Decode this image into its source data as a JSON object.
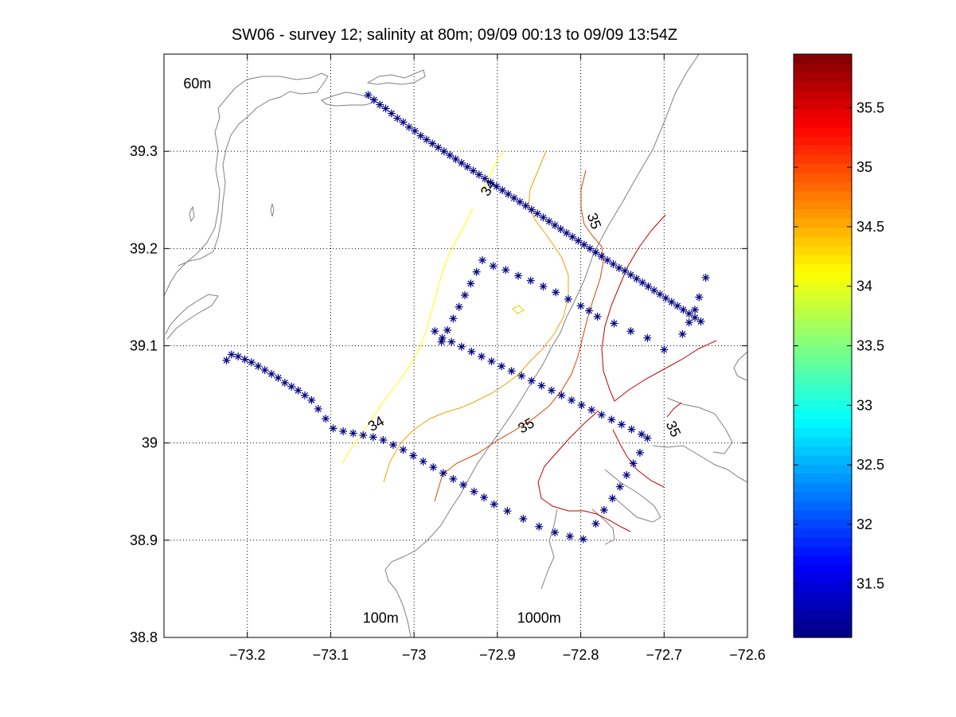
{
  "chart_data": {
    "type": "scatter",
    "title": "SW06 - survey 12; salinity at 80m; 09/09 00:13 to 09/09 13:54Z",
    "xlim": [
      -73.3,
      -72.6
    ],
    "ylim": [
      38.8,
      39.4
    ],
    "xticks": [
      "-73.2",
      "-73.1",
      "-73",
      "-72.9",
      "-72.8",
      "-72.7",
      "-72.6"
    ],
    "yticks": [
      "38.8",
      "38.9",
      "39",
      "39.1",
      "39.2",
      "39.3"
    ],
    "grid": true,
    "annotations": [
      {
        "text": "60m",
        "x": -73.26,
        "y": 39.365
      },
      {
        "text": "100m",
        "x": -73.04,
        "y": 38.815
      },
      {
        "text": "1000m",
        "x": -72.85,
        "y": 38.815
      }
    ],
    "station_marker": "*",
    "station_color": "#000080",
    "station_tracks": [
      {
        "points": [
          [
            -73.055,
            39.358
          ],
          [
            -73.048,
            39.353
          ],
          [
            -73.041,
            39.348
          ],
          [
            -73.034,
            39.344
          ],
          [
            -73.027,
            39.339
          ],
          [
            -73.02,
            39.334
          ],
          [
            -73.013,
            39.33
          ],
          [
            -73.006,
            39.325
          ],
          [
            -72.999,
            39.321
          ],
          [
            -72.992,
            39.316
          ],
          [
            -72.985,
            39.312
          ],
          [
            -72.978,
            39.308
          ],
          [
            -72.971,
            39.304
          ],
          [
            -72.964,
            39.3
          ],
          [
            -72.957,
            39.296
          ],
          [
            -72.95,
            39.292
          ],
          [
            -72.943,
            39.288
          ],
          [
            -72.936,
            39.284
          ],
          [
            -72.929,
            39.28
          ],
          [
            -72.922,
            39.276
          ],
          [
            -72.915,
            39.272
          ],
          [
            -72.908,
            39.268
          ],
          [
            -72.901,
            39.264
          ],
          [
            -72.894,
            39.26
          ],
          [
            -72.887,
            39.256
          ],
          [
            -72.88,
            39.252
          ],
          [
            -72.873,
            39.248
          ],
          [
            -72.866,
            39.244
          ],
          [
            -72.859,
            39.24
          ],
          [
            -72.852,
            39.236
          ],
          [
            -72.845,
            39.232
          ],
          [
            -72.838,
            39.228
          ],
          [
            -72.831,
            39.224
          ],
          [
            -72.824,
            39.22
          ],
          [
            -72.817,
            39.216
          ],
          [
            -72.81,
            39.212
          ],
          [
            -72.803,
            39.208
          ],
          [
            -72.796,
            39.204
          ],
          [
            -72.789,
            39.2
          ],
          [
            -72.782,
            39.196
          ],
          [
            -72.775,
            39.192
          ],
          [
            -72.768,
            39.188
          ],
          [
            -72.761,
            39.184
          ],
          [
            -72.754,
            39.18
          ],
          [
            -72.747,
            39.177
          ],
          [
            -72.74,
            39.173
          ],
          [
            -72.733,
            39.169
          ],
          [
            -72.726,
            39.165
          ],
          [
            -72.719,
            39.161
          ],
          [
            -72.712,
            39.157
          ],
          [
            -72.705,
            39.153
          ],
          [
            -72.698,
            39.149
          ],
          [
            -72.691,
            39.145
          ],
          [
            -72.684,
            39.141
          ],
          [
            -72.677,
            39.137
          ],
          [
            -72.67,
            39.133
          ],
          [
            -72.663,
            39.129
          ],
          [
            -72.656,
            39.125
          ]
        ]
      },
      {
        "points": [
          [
            -72.65,
            39.17
          ],
          [
            -72.658,
            39.15
          ],
          [
            -72.663,
            39.137
          ],
          [
            -72.67,
            39.124
          ],
          [
            -72.678,
            39.112
          ]
        ]
      },
      {
        "points": [
          [
            -72.7,
            39.096
          ],
          [
            -72.72,
            39.108
          ],
          [
            -72.74,
            39.115
          ],
          [
            -72.76,
            39.123
          ],
          [
            -72.78,
            39.13
          ],
          [
            -72.79,
            39.136
          ],
          [
            -72.8,
            39.141
          ],
          [
            -72.815,
            39.148
          ],
          [
            -72.83,
            39.155
          ],
          [
            -72.845,
            39.161
          ],
          [
            -72.86,
            39.167
          ],
          [
            -72.875,
            39.172
          ],
          [
            -72.89,
            39.178
          ],
          [
            -72.905,
            39.182
          ],
          [
            -72.918,
            39.188
          ],
          [
            -72.925,
            39.176
          ],
          [
            -72.932,
            39.164
          ],
          [
            -72.939,
            39.152
          ],
          [
            -72.946,
            39.14
          ],
          [
            -72.953,
            39.128
          ],
          [
            -72.96,
            39.116
          ],
          [
            -72.967,
            39.104
          ],
          [
            -72.975,
            39.115
          ]
        ]
      },
      {
        "points": [
          [
            -72.966,
            39.108
          ],
          [
            -72.955,
            39.104
          ],
          [
            -72.943,
            39.099
          ],
          [
            -72.931,
            39.094
          ],
          [
            -72.919,
            39.089
          ],
          [
            -72.907,
            39.084
          ],
          [
            -72.895,
            39.079
          ],
          [
            -72.883,
            39.074
          ],
          [
            -72.871,
            39.069
          ],
          [
            -72.859,
            39.064
          ],
          [
            -72.847,
            39.059
          ],
          [
            -72.835,
            39.054
          ],
          [
            -72.823,
            39.049
          ],
          [
            -72.811,
            39.044
          ],
          [
            -72.799,
            39.039
          ],
          [
            -72.787,
            39.034
          ],
          [
            -72.775,
            39.029
          ],
          [
            -72.763,
            39.024
          ],
          [
            -72.751,
            39.019
          ],
          [
            -72.739,
            39.014
          ],
          [
            -72.727,
            39.009
          ],
          [
            -72.72,
            39.005
          ]
        ]
      },
      {
        "points": [
          [
            -72.729,
            38.99
          ],
          [
            -72.737,
            38.979
          ],
          [
            -72.745,
            38.967
          ],
          [
            -72.753,
            38.955
          ],
          [
            -72.762,
            38.943
          ],
          [
            -72.772,
            38.931
          ],
          [
            -72.782,
            38.917
          ]
        ]
      },
      {
        "points": [
          [
            -72.797,
            38.901
          ],
          [
            -72.813,
            38.904
          ],
          [
            -72.831,
            38.908
          ],
          [
            -72.85,
            38.914
          ],
          [
            -72.869,
            38.922
          ],
          [
            -72.888,
            38.93
          ],
          [
            -72.904,
            38.937
          ],
          [
            -72.916,
            38.944
          ],
          [
            -72.928,
            38.95
          ],
          [
            -72.941,
            38.957
          ],
          [
            -72.953,
            38.963
          ],
          [
            -72.965,
            38.969
          ],
          [
            -72.977,
            38.975
          ],
          [
            -72.989,
            38.981
          ],
          [
            -73.001,
            38.987
          ],
          [
            -73.013,
            38.993
          ],
          [
            -73.025,
            38.998
          ],
          [
            -73.037,
            39.003
          ],
          [
            -73.049,
            39.006
          ],
          [
            -73.061,
            39.008
          ],
          [
            -73.073,
            39.01
          ],
          [
            -73.085,
            39.012
          ],
          [
            -73.097,
            39.015
          ],
          [
            -73.106,
            39.025
          ],
          [
            -73.115,
            39.035
          ],
          [
            -73.123,
            39.044
          ],
          [
            -73.131,
            39.049
          ],
          [
            -73.139,
            39.054
          ],
          [
            -73.147,
            39.058
          ],
          [
            -73.155,
            39.062
          ],
          [
            -73.163,
            39.067
          ],
          [
            -73.171,
            39.071
          ],
          [
            -73.179,
            39.075
          ],
          [
            -73.187,
            39.079
          ],
          [
            -73.195,
            39.083
          ],
          [
            -73.203,
            39.086
          ],
          [
            -73.211,
            39.089
          ],
          [
            -73.219,
            39.091
          ],
          [
            -73.225,
            39.085
          ]
        ]
      }
    ],
    "contour_labels": [
      {
        "text": "34",
        "x": -72.91,
        "y": 39.262,
        "rotate": -60
      },
      {
        "text": "34",
        "x": -73.045,
        "y": 39.019,
        "rotate": -30
      },
      {
        "text": "35",
        "x": -72.785,
        "y": 39.228,
        "rotate": 70
      },
      {
        "text": "35",
        "x": -72.865,
        "y": 39.017,
        "rotate": -30
      },
      {
        "text": "35",
        "x": -72.69,
        "y": 39.014,
        "rotate": 65
      }
    ],
    "colorbar": {
      "colormap": "jet",
      "range": [
        31.05,
        35.95
      ],
      "ticks": [
        "31.5",
        "32",
        "32.5",
        "33",
        "33.5",
        "34",
        "34.5",
        "35",
        "35.5"
      ]
    }
  }
}
